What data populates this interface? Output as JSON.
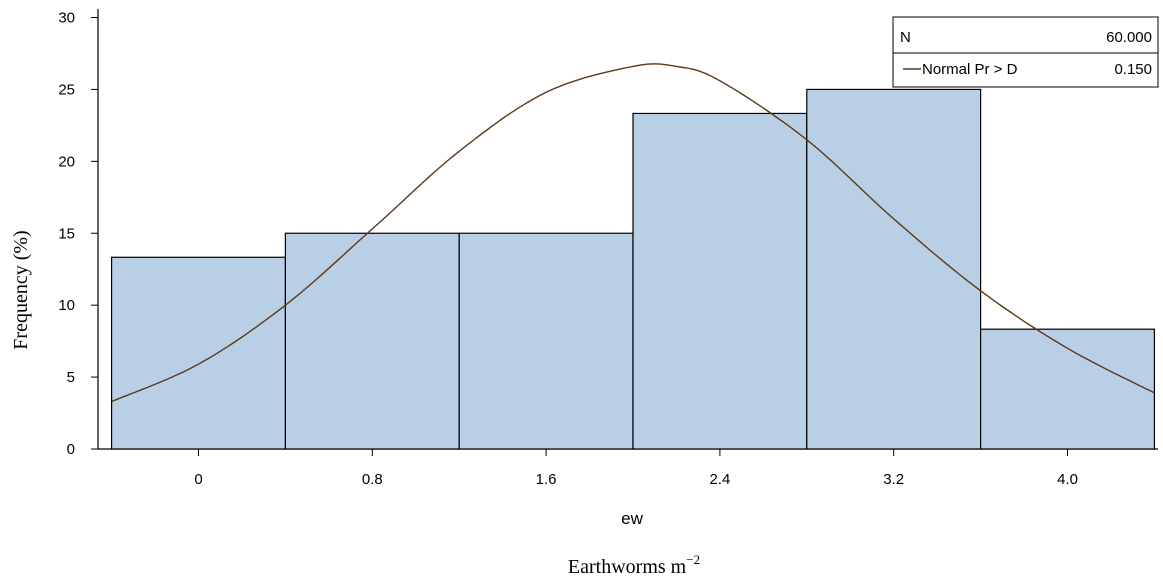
{
  "chart_data": {
    "type": "bar",
    "subtype": "histogram-with-normal-curve",
    "categories": [
      "0",
      "0.8",
      "1.6",
      "2.4",
      "3.2",
      "4.0"
    ],
    "values": [
      13.33,
      15.0,
      15.0,
      23.33,
      25.0,
      8.33
    ],
    "bin_width": 0.8,
    "xlabel": "ew",
    "xlabel_secondary": "Earthworms m",
    "xlabel_secondary_sup": "−2",
    "ylabel": "Frequency (%)",
    "ylim": [
      0,
      30
    ],
    "yticks": [
      "0",
      "5",
      "10",
      "15",
      "20",
      "25",
      "30"
    ],
    "bar_color": "#b9cfe6",
    "curve_color": "#5a3a1a",
    "normal_curve": {
      "x": [
        -0.4,
        0.0,
        0.4,
        0.8,
        1.2,
        1.6,
        2.0,
        2.2,
        2.4,
        2.8,
        3.2,
        3.6,
        4.0,
        4.4
      ],
      "y": [
        3.3,
        5.9,
        10.0,
        15.3,
        20.7,
        24.8,
        26.6,
        26.6,
        25.6,
        21.5,
        16.0,
        11.0,
        7.0,
        3.9
      ]
    },
    "legend": {
      "placement": "top-right",
      "rows": [
        {
          "label": "N",
          "value": "60.000",
          "line": false
        },
        {
          "label": "Normal Pr > D",
          "value": "0.150",
          "line": true
        }
      ]
    }
  }
}
